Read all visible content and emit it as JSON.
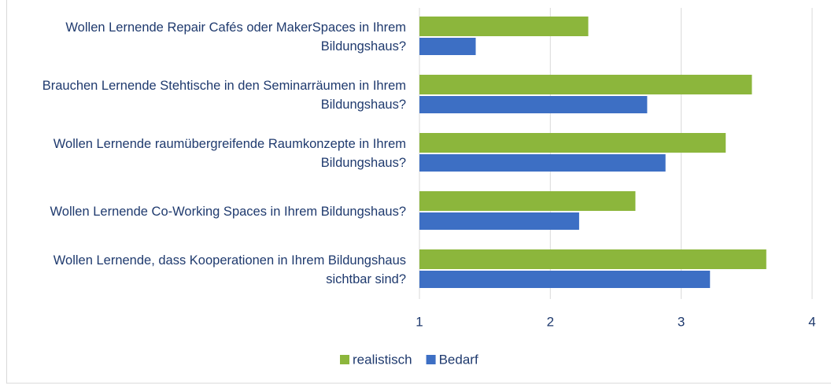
{
  "chart_data": {
    "type": "barh",
    "categories": [
      "Wollen Lernende Repair Cafés oder MakerSpaces in Ihrem Bildungshaus?",
      "Brauchen Lernende Stehtische in den Seminarräumen in Ihrem Bildungshaus?",
      "Wollen Lernende raumübergreifende Raumkonzepte in Ihrem Bildungshaus?",
      "Wollen Lernende Co-Working Spaces in Ihrem Bildungshaus?",
      "Wollen Lernende, dass Kooperationen in Ihrem Bildungshaus sichtbar sind?"
    ],
    "series": [
      {
        "name": "realistisch",
        "color": "#8cb63c",
        "values": [
          2.29,
          3.54,
          3.34,
          2.65,
          3.65
        ]
      },
      {
        "name": "Bedarf",
        "color": "#3d6fc4",
        "values": [
          1.43,
          2.74,
          2.88,
          2.22,
          3.22
        ]
      }
    ],
    "xlim": [
      1,
      4
    ],
    "xticks": [
      1,
      2,
      3,
      4
    ],
    "grid": true,
    "legend": "bottom"
  }
}
